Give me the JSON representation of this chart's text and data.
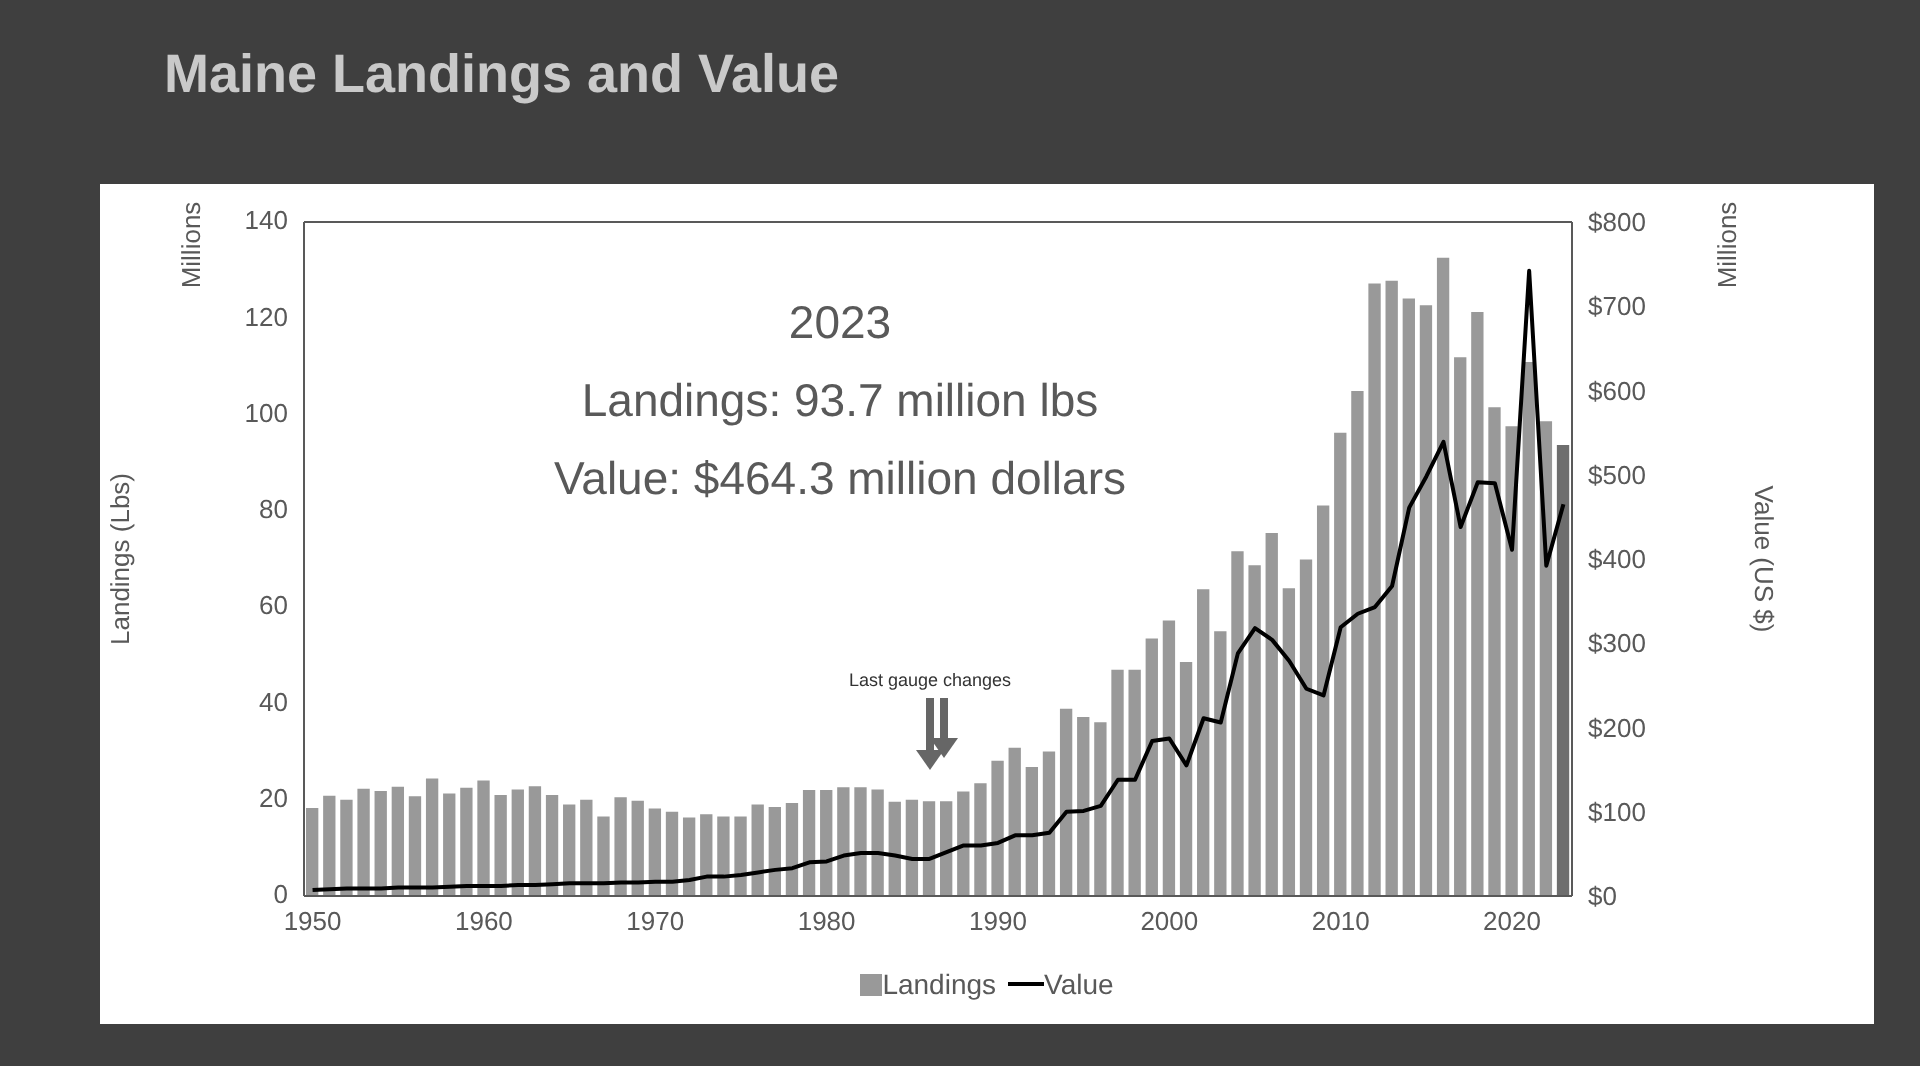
{
  "chart_data": {
    "type": "bar",
    "title": "Maine Landings and Value",
    "xlabel": null,
    "ylabel": "Landings (Lbs)",
    "y2label": "Value (US $)",
    "x": [
      1950,
      1951,
      1952,
      1953,
      1954,
      1955,
      1956,
      1957,
      1958,
      1959,
      1960,
      1961,
      1962,
      1963,
      1964,
      1965,
      1966,
      1967,
      1968,
      1969,
      1970,
      1971,
      1972,
      1973,
      1974,
      1975,
      1976,
      1977,
      1978,
      1979,
      1980,
      1981,
      1982,
      1983,
      1984,
      1985,
      1986,
      1987,
      1988,
      1989,
      1990,
      1991,
      1992,
      1993,
      1994,
      1995,
      1996,
      1997,
      1998,
      1999,
      2000,
      2001,
      2002,
      2003,
      2004,
      2005,
      2006,
      2007,
      2008,
      2009,
      2010,
      2011,
      2012,
      2013,
      2014,
      2015,
      2016,
      2017,
      2018,
      2019,
      2020,
      2021,
      2022,
      2023
    ],
    "series": [
      {
        "name": "Landings",
        "color": "#999999",
        "colors": [
          "#999999",
          "#999999",
          "#999999",
          "#999999",
          "#999999",
          "#999999",
          "#999999",
          "#999999",
          "#999999",
          "#999999",
          "#999999",
          "#999999",
          "#999999",
          "#999999",
          "#999999",
          "#999999",
          "#999999",
          "#999999",
          "#999999",
          "#999999",
          "#999999",
          "#999999",
          "#999999",
          "#999999",
          "#999999",
          "#999999",
          "#999999",
          "#999999",
          "#999999",
          "#999999",
          "#999999",
          "#999999",
          "#999999",
          "#999999",
          "#999999",
          "#999999",
          "#999999",
          "#999999",
          "#999999",
          "#999999",
          "#999999",
          "#999999",
          "#999999",
          "#999999",
          "#999999",
          "#999999",
          "#999999",
          "#999999",
          "#999999",
          "#999999",
          "#999999",
          "#999999",
          "#999999",
          "#999999",
          "#999999",
          "#999999",
          "#999999",
          "#999999",
          "#999999",
          "#999999",
          "#999999",
          "#999999",
          "#999999",
          "#999999",
          "#999999",
          "#999999",
          "#999999",
          "#999999",
          "#999999",
          "#999999",
          "#999999",
          "#999999",
          "#999999",
          "#6e6e6e"
        ],
        "values": [
          18.3,
          20.8,
          20.0,
          22.3,
          21.8,
          22.7,
          20.7,
          24.4,
          21.3,
          22.5,
          24.0,
          21.0,
          22.1,
          22.8,
          21.0,
          19.0,
          20.0,
          16.5,
          20.5,
          19.8,
          18.2,
          17.5,
          16.3,
          17.0,
          16.5,
          16.5,
          19.0,
          18.5,
          19.3,
          22.0,
          22.0,
          22.6,
          22.6,
          22.1,
          19.6,
          20.0,
          19.7,
          19.7,
          21.7,
          23.4,
          28.1,
          30.8,
          26.8,
          30.0,
          38.9,
          37.2,
          36.1,
          47.0,
          47.0,
          53.5,
          57.2,
          48.6,
          63.7,
          55.0,
          71.6,
          68.7,
          75.4,
          63.9,
          69.9,
          81.1,
          96.2,
          104.9,
          127.2,
          127.8,
          124.1,
          122.7,
          132.6,
          111.9,
          121.3,
          101.5,
          97.6,
          110.9,
          98.6,
          93.7
        ]
      },
      {
        "name": "Value",
        "type": "line",
        "axis": "y2",
        "color": "#000000",
        "values": [
          7,
          8,
          9,
          9,
          9,
          10,
          10,
          10,
          11,
          12,
          12,
          12,
          13,
          13,
          14,
          15,
          15,
          15,
          16,
          16,
          17,
          17,
          19,
          23,
          23,
          25,
          28,
          31,
          33,
          40,
          41,
          48,
          51,
          51,
          48,
          44,
          44,
          52,
          60,
          60,
          63,
          72,
          72,
          75,
          100,
          101,
          107,
          138,
          138,
          184,
          187,
          155,
          211,
          206,
          288,
          318,
          304,
          279,
          246,
          238,
          319,
          335,
          343,
          368,
          461,
          498,
          539,
          438,
          491,
          490,
          411,
          742,
          392,
          465
        ]
      }
    ],
    "xlim": [
      1949.5,
      2023.5
    ],
    "xticks": [
      1950,
      1960,
      1970,
      1980,
      1990,
      2000,
      2010,
      2020
    ],
    "ylim": [
      0,
      140
    ],
    "yticks": [
      0,
      20,
      40,
      60,
      80,
      100,
      120,
      140
    ],
    "y2lim": [
      0,
      800
    ],
    "y2ticks": [
      {
        "value": 0,
        "label": "$0"
      },
      {
        "value": 100,
        "label": "$100"
      },
      {
        "value": 200,
        "label": "$200"
      },
      {
        "value": 300,
        "label": "$300"
      },
      {
        "value": 400,
        "label": "$400"
      },
      {
        "value": 500,
        "label": "$500"
      },
      {
        "value": 600,
        "label": "$600"
      },
      {
        "value": 700,
        "label": "$700"
      },
      {
        "value": 800,
        "label": "$800"
      }
    ],
    "annotations": [
      "2023",
      "Landings: 93.7 million lbs",
      "Value: $464.3 million dollars",
      "Last gauge changes",
      "Millions",
      "Millions"
    ],
    "grid": false,
    "legend": "bottom",
    "marker": "none",
    "line_style": "solid"
  }
}
